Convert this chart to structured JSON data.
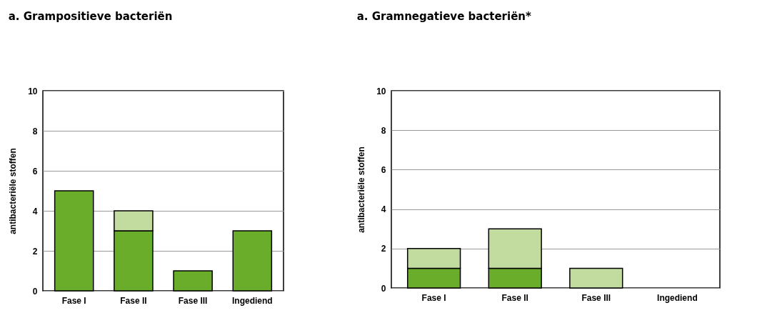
{
  "chart_data": [
    {
      "type": "bar",
      "title": "a. Grampositieve bacteriën",
      "ylabel": "antibacteriële stoffen",
      "categories": [
        "Fase I",
        "Fase II",
        "Fase III",
        "Ingediend"
      ],
      "stacked": true,
      "ylim": [
        0,
        10
      ],
      "yticks": [
        0,
        2,
        4,
        6,
        8,
        10
      ],
      "grid": "y",
      "series": [
        {
          "color": "#6aad2b",
          "values": [
            5,
            3,
            1,
            3
          ]
        },
        {
          "color": "#c2dc9f",
          "values": [
            0,
            1,
            0,
            0
          ]
        }
      ]
    },
    {
      "type": "bar",
      "title": "a. Gramnegatieve bacteriën*",
      "ylabel": "antibacteriële stoffen",
      "categories": [
        "Fase I",
        "Fase II",
        "Fase III",
        "Ingediend"
      ],
      "stacked": true,
      "ylim": [
        0,
        10
      ],
      "yticks": [
        0,
        2,
        4,
        6,
        8,
        10
      ],
      "grid": "y",
      "series": [
        {
          "color": "#6aad2b",
          "values": [
            1,
            1,
            0,
            0
          ]
        },
        {
          "color": "#c2dc9f",
          "values": [
            1,
            2,
            1,
            0
          ]
        }
      ]
    }
  ]
}
